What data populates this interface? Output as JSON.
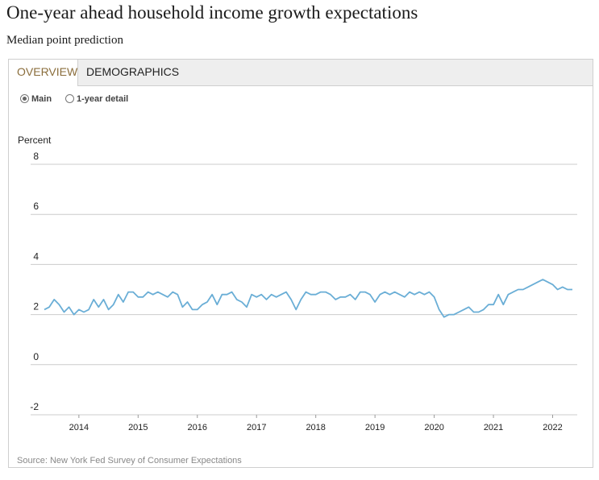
{
  "title": "One-year ahead household income growth expectations",
  "subtitle": "Median point prediction",
  "tabs": [
    {
      "label": "OVERVIEW",
      "active": true
    },
    {
      "label": "DEMOGRAPHICS",
      "active": false
    }
  ],
  "radio_options": [
    {
      "label": "Main",
      "checked": true
    },
    {
      "label": "1-year detail",
      "checked": false
    }
  ],
  "source": "Source: New York Fed Survey of Consumer Expectations",
  "colors": {
    "line": "#6aaed6",
    "grid": "#cccccc",
    "active_tab_text": "#8a6d3b"
  },
  "chart_data": {
    "type": "line",
    "ylabel": "Percent",
    "ylim": [
      -2,
      8
    ],
    "yticks": [
      -2,
      0,
      2,
      4,
      6,
      8
    ],
    "xticks": [
      "2014",
      "2015",
      "2016",
      "2017",
      "2018",
      "2019",
      "2020",
      "2021",
      "2022"
    ],
    "xlim": [
      "2013-06",
      "2022-05"
    ],
    "grid": true,
    "series": [
      {
        "x": [
          "2013-06",
          "2013-07",
          "2013-08",
          "2013-09",
          "2013-10",
          "2013-11",
          "2013-12",
          "2014-01",
          "2014-02",
          "2014-03",
          "2014-04",
          "2014-05",
          "2014-06",
          "2014-07",
          "2014-08",
          "2014-09",
          "2014-10",
          "2014-11",
          "2014-12",
          "2015-01",
          "2015-02",
          "2015-03",
          "2015-04",
          "2015-05",
          "2015-06",
          "2015-07",
          "2015-08",
          "2015-09",
          "2015-10",
          "2015-11",
          "2015-12",
          "2016-01",
          "2016-02",
          "2016-03",
          "2016-04",
          "2016-05",
          "2016-06",
          "2016-07",
          "2016-08",
          "2016-09",
          "2016-10",
          "2016-11",
          "2016-12",
          "2017-01",
          "2017-02",
          "2017-03",
          "2017-04",
          "2017-05",
          "2017-06",
          "2017-07",
          "2017-08",
          "2017-09",
          "2017-10",
          "2017-11",
          "2017-12",
          "2018-01",
          "2018-02",
          "2018-03",
          "2018-04",
          "2018-05",
          "2018-06",
          "2018-07",
          "2018-08",
          "2018-09",
          "2018-10",
          "2018-11",
          "2018-12",
          "2019-01",
          "2019-02",
          "2019-03",
          "2019-04",
          "2019-05",
          "2019-06",
          "2019-07",
          "2019-08",
          "2019-09",
          "2019-10",
          "2019-11",
          "2019-12",
          "2020-01",
          "2020-02",
          "2020-03",
          "2020-04",
          "2020-05",
          "2020-06",
          "2020-07",
          "2020-08",
          "2020-09",
          "2020-10",
          "2020-11",
          "2020-12",
          "2021-01",
          "2021-02",
          "2021-03",
          "2021-04",
          "2021-05",
          "2021-06",
          "2021-07",
          "2021-08",
          "2021-09",
          "2021-10",
          "2021-11",
          "2021-12",
          "2022-01",
          "2022-02",
          "2022-03",
          "2022-04",
          "2022-05"
        ],
        "values": [
          2.2,
          2.3,
          2.6,
          2.4,
          2.1,
          2.3,
          2.0,
          2.2,
          2.1,
          2.2,
          2.6,
          2.3,
          2.6,
          2.2,
          2.4,
          2.8,
          2.5,
          2.9,
          2.9,
          2.7,
          2.7,
          2.9,
          2.8,
          2.9,
          2.8,
          2.7,
          2.9,
          2.8,
          2.3,
          2.5,
          2.2,
          2.2,
          2.4,
          2.5,
          2.8,
          2.4,
          2.8,
          2.8,
          2.9,
          2.6,
          2.5,
          2.3,
          2.8,
          2.7,
          2.8,
          2.6,
          2.8,
          2.7,
          2.8,
          2.9,
          2.6,
          2.2,
          2.6,
          2.9,
          2.8,
          2.8,
          2.9,
          2.9,
          2.8,
          2.6,
          2.7,
          2.7,
          2.8,
          2.6,
          2.9,
          2.9,
          2.8,
          2.5,
          2.8,
          2.9,
          2.8,
          2.9,
          2.8,
          2.7,
          2.9,
          2.8,
          2.9,
          2.8,
          2.9,
          2.7,
          2.2,
          1.9,
          2.0,
          2.0,
          2.1,
          2.2,
          2.3,
          2.1,
          2.1,
          2.2,
          2.4,
          2.4,
          2.8,
          2.4,
          2.8,
          2.9,
          3.0,
          3.0,
          3.1,
          3.2,
          3.3,
          3.4,
          3.3,
          3.2,
          3.0,
          3.1,
          3.0,
          3.0
        ]
      }
    ]
  }
}
